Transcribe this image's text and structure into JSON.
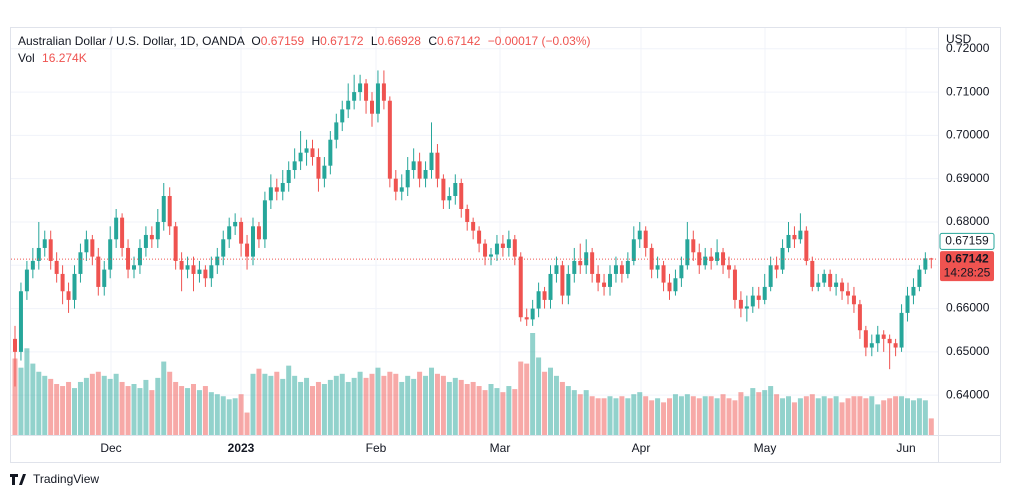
{
  "chart_data": {
    "type": "candlestick",
    "symbol": "Australian Dollar / U.S. Dollar, 1D, OANDA",
    "ohlc_labels": [
      "O",
      "H",
      "L",
      "C"
    ],
    "change": "−0.00017 (−0.03%)",
    "y_axis_label": "USD",
    "countdown": "14:28:25",
    "brand": "TradingView",
    "up_color": "#26a69a",
    "down_color": "#ef5350",
    "grid": true,
    "ylim": [
      0.6308,
      0.7248
    ],
    "yticks": [
      {
        "value": 0.64,
        "label": "0.64000"
      },
      {
        "value": 0.65,
        "label": "0.65000"
      },
      {
        "value": 0.66,
        "label": "0.66000"
      },
      {
        "value": 0.67,
        "label": "0.67000"
      },
      {
        "value": 0.68,
        "label": "0.68000"
      },
      {
        "value": 0.69,
        "label": "0.69000"
      },
      {
        "value": 0.7,
        "label": "0.70000"
      },
      {
        "value": 0.71,
        "label": "0.71000"
      },
      {
        "value": 0.72,
        "label": "0.72000"
      }
    ],
    "x_labels": [
      "Dec",
      "2023",
      "Feb",
      "Mar",
      "Apr",
      "May",
      "Jun"
    ],
    "candles": [
      [
        0.653,
        0.656,
        0.642,
        0.65
      ],
      [
        0.65,
        0.666,
        0.648,
        0.664
      ],
      [
        0.664,
        0.671,
        0.662,
        0.669
      ],
      [
        0.669,
        0.674,
        0.667,
        0.671
      ],
      [
        0.671,
        0.68,
        0.669,
        0.674
      ],
      [
        0.674,
        0.678,
        0.672,
        0.676
      ],
      [
        0.676,
        0.678,
        0.669,
        0.671
      ],
      [
        0.671,
        0.673,
        0.666,
        0.668
      ],
      [
        0.668,
        0.67,
        0.661,
        0.664
      ],
      [
        0.664,
        0.666,
        0.659,
        0.662
      ],
      [
        0.662,
        0.67,
        0.66,
        0.668
      ],
      [
        0.668,
        0.675,
        0.666,
        0.673
      ],
      [
        0.673,
        0.678,
        0.671,
        0.676
      ],
      [
        0.676,
        0.677,
        0.67,
        0.672
      ],
      [
        0.672,
        0.674,
        0.663,
        0.665
      ],
      [
        0.665,
        0.671,
        0.663,
        0.669
      ],
      [
        0.669,
        0.679,
        0.667,
        0.676
      ],
      [
        0.676,
        0.683,
        0.674,
        0.681
      ],
      [
        0.681,
        0.682,
        0.672,
        0.674
      ],
      [
        0.674,
        0.676,
        0.667,
        0.669
      ],
      [
        0.669,
        0.672,
        0.667,
        0.67
      ],
      [
        0.67,
        0.676,
        0.668,
        0.674
      ],
      [
        0.674,
        0.679,
        0.672,
        0.677
      ],
      [
        0.677,
        0.679,
        0.674,
        0.676
      ],
      [
        0.676,
        0.683,
        0.674,
        0.68
      ],
      [
        0.68,
        0.689,
        0.678,
        0.686
      ],
      [
        0.686,
        0.688,
        0.677,
        0.679
      ],
      [
        0.679,
        0.68,
        0.669,
        0.671
      ],
      [
        0.671,
        0.673,
        0.664,
        0.669
      ],
      [
        0.669,
        0.672,
        0.667,
        0.67
      ],
      [
        0.67,
        0.672,
        0.664,
        0.668
      ],
      [
        0.668,
        0.671,
        0.666,
        0.669
      ],
      [
        0.669,
        0.67,
        0.665,
        0.667
      ],
      [
        0.667,
        0.672,
        0.665,
        0.67
      ],
      [
        0.67,
        0.674,
        0.668,
        0.672
      ],
      [
        0.672,
        0.678,
        0.67,
        0.676
      ],
      [
        0.676,
        0.681,
        0.674,
        0.679
      ],
      [
        0.679,
        0.682,
        0.677,
        0.68
      ],
      [
        0.68,
        0.681,
        0.672,
        0.675
      ],
      [
        0.675,
        0.677,
        0.669,
        0.672
      ],
      [
        0.672,
        0.681,
        0.67,
        0.679
      ],
      [
        0.679,
        0.68,
        0.674,
        0.676
      ],
      [
        0.676,
        0.687,
        0.674,
        0.685
      ],
      [
        0.685,
        0.691,
        0.683,
        0.688
      ],
      [
        0.688,
        0.69,
        0.685,
        0.687
      ],
      [
        0.687,
        0.692,
        0.685,
        0.689
      ],
      [
        0.689,
        0.694,
        0.687,
        0.692
      ],
      [
        0.692,
        0.697,
        0.69,
        0.694
      ],
      [
        0.694,
        0.701,
        0.692,
        0.696
      ],
      [
        0.696,
        0.699,
        0.693,
        0.697
      ],
      [
        0.697,
        0.699,
        0.693,
        0.695
      ],
      [
        0.695,
        0.697,
        0.687,
        0.69
      ],
      [
        0.69,
        0.695,
        0.688,
        0.693
      ],
      [
        0.693,
        0.701,
        0.691,
        0.699
      ],
      [
        0.699,
        0.705,
        0.697,
        0.703
      ],
      [
        0.703,
        0.708,
        0.701,
        0.706
      ],
      [
        0.706,
        0.712,
        0.704,
        0.708
      ],
      [
        0.708,
        0.714,
        0.706,
        0.71
      ],
      [
        0.71,
        0.714,
        0.708,
        0.712
      ],
      [
        0.712,
        0.713,
        0.705,
        0.708
      ],
      [
        0.708,
        0.71,
        0.702,
        0.705
      ],
      [
        0.705,
        0.715,
        0.703,
        0.712
      ],
      [
        0.712,
        0.715,
        0.706,
        0.708
      ],
      [
        0.708,
        0.709,
        0.688,
        0.69
      ],
      [
        0.69,
        0.692,
        0.685,
        0.687
      ],
      [
        0.687,
        0.691,
        0.685,
        0.688
      ],
      [
        0.688,
        0.695,
        0.686,
        0.692
      ],
      [
        0.692,
        0.697,
        0.69,
        0.694
      ],
      [
        0.694,
        0.696,
        0.688,
        0.69
      ],
      [
        0.69,
        0.694,
        0.688,
        0.692
      ],
      [
        0.692,
        0.703,
        0.69,
        0.696
      ],
      [
        0.696,
        0.698,
        0.688,
        0.69
      ],
      [
        0.69,
        0.691,
        0.683,
        0.685
      ],
      [
        0.685,
        0.688,
        0.683,
        0.686
      ],
      [
        0.686,
        0.691,
        0.684,
        0.689
      ],
      [
        0.689,
        0.69,
        0.681,
        0.683
      ],
      [
        0.683,
        0.684,
        0.678,
        0.68
      ],
      [
        0.68,
        0.681,
        0.676,
        0.678
      ],
      [
        0.678,
        0.679,
        0.673,
        0.675
      ],
      [
        0.675,
        0.676,
        0.67,
        0.672
      ],
      [
        0.672,
        0.674,
        0.67,
        0.6725
      ],
      [
        0.6725,
        0.677,
        0.671,
        0.675
      ],
      [
        0.675,
        0.677,
        0.672,
        0.674
      ],
      [
        0.674,
        0.678,
        0.672,
        0.676
      ],
      [
        0.676,
        0.677,
        0.67,
        0.672
      ],
      [
        0.672,
        0.673,
        0.657,
        0.658
      ],
      [
        0.658,
        0.66,
        0.656,
        0.6575
      ],
      [
        0.6575,
        0.662,
        0.656,
        0.66
      ],
      [
        0.66,
        0.666,
        0.658,
        0.664
      ],
      [
        0.664,
        0.665,
        0.66,
        0.662
      ],
      [
        0.662,
        0.67,
        0.66,
        0.668
      ],
      [
        0.668,
        0.672,
        0.666,
        0.67
      ],
      [
        0.67,
        0.671,
        0.661,
        0.663
      ],
      [
        0.663,
        0.67,
        0.661,
        0.668
      ],
      [
        0.668,
        0.674,
        0.666,
        0.671
      ],
      [
        0.671,
        0.675,
        0.668,
        0.67
      ],
      [
        0.67,
        0.676,
        0.668,
        0.673
      ],
      [
        0.673,
        0.674,
        0.666,
        0.668
      ],
      [
        0.668,
        0.67,
        0.664,
        0.666
      ],
      [
        0.666,
        0.668,
        0.663,
        0.665
      ],
      [
        0.665,
        0.67,
        0.663,
        0.668
      ],
      [
        0.668,
        0.672,
        0.666,
        0.67
      ],
      [
        0.67,
        0.671,
        0.666,
        0.668
      ],
      [
        0.668,
        0.673,
        0.667,
        0.671
      ],
      [
        0.671,
        0.679,
        0.67,
        0.676
      ],
      [
        0.676,
        0.68,
        0.674,
        0.678
      ],
      [
        0.678,
        0.679,
        0.672,
        0.674
      ],
      [
        0.674,
        0.675,
        0.667,
        0.669
      ],
      [
        0.669,
        0.672,
        0.667,
        0.67
      ],
      [
        0.67,
        0.671,
        0.664,
        0.666
      ],
      [
        0.666,
        0.668,
        0.662,
        0.664
      ],
      [
        0.664,
        0.669,
        0.663,
        0.667
      ],
      [
        0.667,
        0.672,
        0.665,
        0.67
      ],
      [
        0.67,
        0.68,
        0.669,
        0.676
      ],
      [
        0.676,
        0.678,
        0.671,
        0.673
      ],
      [
        0.673,
        0.675,
        0.668,
        0.67
      ],
      [
        0.67,
        0.674,
        0.669,
        0.672
      ],
      [
        0.672,
        0.674,
        0.669,
        0.671
      ],
      [
        0.671,
        0.676,
        0.67,
        0.673
      ],
      [
        0.673,
        0.674,
        0.668,
        0.67
      ],
      [
        0.67,
        0.672,
        0.667,
        0.669
      ],
      [
        0.669,
        0.67,
        0.66,
        0.662
      ],
      [
        0.662,
        0.664,
        0.658,
        0.66
      ],
      [
        0.66,
        0.663,
        0.657,
        0.6605
      ],
      [
        0.6605,
        0.665,
        0.659,
        0.663
      ],
      [
        0.663,
        0.665,
        0.66,
        0.662
      ],
      [
        0.662,
        0.668,
        0.661,
        0.665
      ],
      [
        0.665,
        0.672,
        0.664,
        0.67
      ],
      [
        0.67,
        0.672,
        0.667,
        0.669
      ],
      [
        0.669,
        0.676,
        0.668,
        0.674
      ],
      [
        0.674,
        0.68,
        0.673,
        0.677
      ],
      [
        0.677,
        0.679,
        0.674,
        0.676
      ],
      [
        0.676,
        0.682,
        0.675,
        0.678
      ],
      [
        0.678,
        0.679,
        0.67,
        0.671
      ],
      [
        0.671,
        0.672,
        0.664,
        0.665
      ],
      [
        0.665,
        0.668,
        0.664,
        0.666
      ],
      [
        0.666,
        0.669,
        0.665,
        0.668
      ],
      [
        0.668,
        0.669,
        0.664,
        0.665
      ],
      [
        0.665,
        0.668,
        0.663,
        0.666
      ],
      [
        0.666,
        0.667,
        0.662,
        0.664
      ],
      [
        0.664,
        0.666,
        0.661,
        0.663
      ],
      [
        0.663,
        0.665,
        0.659,
        0.661
      ],
      [
        0.661,
        0.662,
        0.653,
        0.655
      ],
      [
        0.655,
        0.656,
        0.649,
        0.651
      ],
      [
        0.651,
        0.654,
        0.649,
        0.652
      ],
      [
        0.652,
        0.656,
        0.65,
        0.654
      ],
      [
        0.654,
        0.655,
        0.65,
        0.653
      ],
      [
        0.653,
        0.654,
        0.646,
        0.652
      ],
      [
        0.652,
        0.653,
        0.649,
        0.651
      ],
      [
        0.651,
        0.661,
        0.65,
        0.659
      ],
      [
        0.659,
        0.665,
        0.657,
        0.663
      ],
      [
        0.663,
        0.667,
        0.661,
        0.665
      ],
      [
        0.665,
        0.67,
        0.664,
        0.669
      ],
      [
        0.669,
        0.673,
        0.668,
        0.6716
      ],
      [
        0.67159,
        0.67172,
        0.66928,
        0.67142
      ]
    ],
    "volume": {
      "name": "Vol",
      "last_label": "16.274K",
      "values": [
        75,
        66,
        85,
        70,
        62,
        58,
        55,
        50,
        48,
        52,
        46,
        52,
        56,
        60,
        62,
        58,
        55,
        60,
        52,
        48,
        50,
        46,
        54,
        44,
        56,
        72,
        62,
        52,
        48,
        46,
        50,
        44,
        48,
        42,
        40,
        38,
        35,
        36,
        40,
        22,
        60,
        65,
        60,
        58,
        62,
        55,
        68,
        58,
        52,
        56,
        48,
        52,
        50,
        54,
        58,
        60,
        52,
        56,
        62,
        56,
        60,
        66,
        58,
        62,
        60,
        52,
        58,
        55,
        62,
        58,
        66,
        60,
        58,
        52,
        56,
        54,
        50,
        52,
        48,
        44,
        50,
        46,
        42,
        48,
        45,
        72,
        70,
        100,
        76,
        62,
        66,
        58,
        52,
        48,
        44,
        40,
        44,
        38,
        36,
        36,
        38,
        36,
        38,
        36,
        40,
        42,
        38,
        34,
        36,
        32,
        36,
        40,
        38,
        40,
        38,
        36,
        38,
        38,
        36,
        40,
        36,
        34,
        42,
        38,
        46,
        42,
        44,
        48,
        40,
        36,
        38,
        32,
        36,
        38,
        40,
        36,
        38,
        36,
        38,
        32,
        36,
        38,
        38,
        36,
        38,
        30,
        34,
        36,
        38,
        38,
        36,
        34,
        36,
        34,
        16.274
      ]
    }
  }
}
